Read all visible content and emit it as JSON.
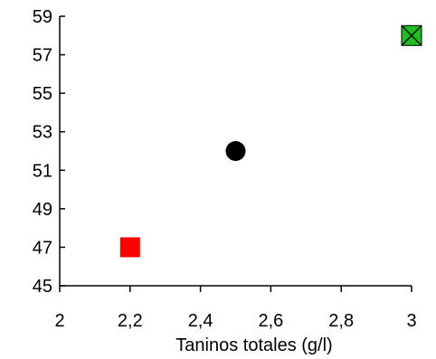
{
  "chart_data": {
    "type": "scatter",
    "title": "",
    "xlabel": "Taninos totales (g/l)",
    "ylabel": "",
    "xlim": [
      2,
      3
    ],
    "ylim": [
      45,
      59
    ],
    "x_ticks": [
      "2",
      "2,2",
      "2,4",
      "2,6",
      "2,8",
      "3"
    ],
    "y_ticks": [
      "45",
      "47",
      "49",
      "51",
      "53",
      "55",
      "57",
      "59"
    ],
    "grid": false,
    "legend": "none",
    "points": [
      {
        "x": 2.2,
        "y": 47,
        "marker": "square",
        "color": "#ff0000"
      },
      {
        "x": 2.5,
        "y": 52,
        "marker": "circle",
        "color": "#000000"
      },
      {
        "x": 3.0,
        "y": 58,
        "marker": "square-x",
        "color": "#22bb22"
      }
    ]
  }
}
